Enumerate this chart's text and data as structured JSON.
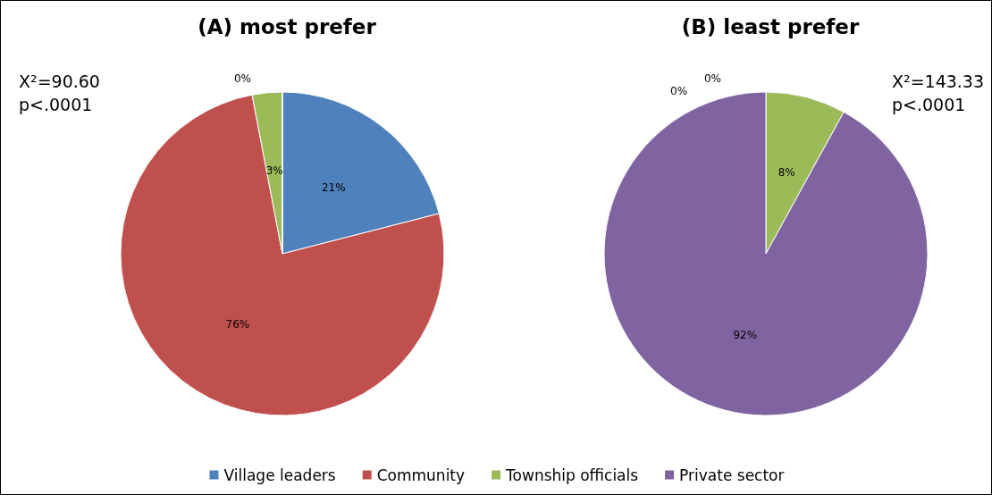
{
  "chart_data": {
    "type": "pie",
    "categories": [
      "Village leaders",
      "Community",
      "Township officials",
      "Private sector"
    ],
    "colors": [
      "#4f81bd",
      "#c0504d",
      "#9bbb59",
      "#8064a2"
    ],
    "legend": "bottom",
    "series": [
      {
        "name": "(A) most prefer",
        "values": [
          21,
          76,
          3,
          0
        ],
        "value_labels": [
          "21%",
          "76%",
          "3%",
          "0%"
        ]
      },
      {
        "name": "(B) least prefer",
        "values": [
          0,
          0,
          8,
          92
        ],
        "value_labels": [
          "0%",
          "0%",
          "8%",
          "92%"
        ]
      }
    ],
    "annotations": [
      "X²=90.60",
      "p<.0001",
      "X²=143.33",
      "p<.0001"
    ]
  }
}
